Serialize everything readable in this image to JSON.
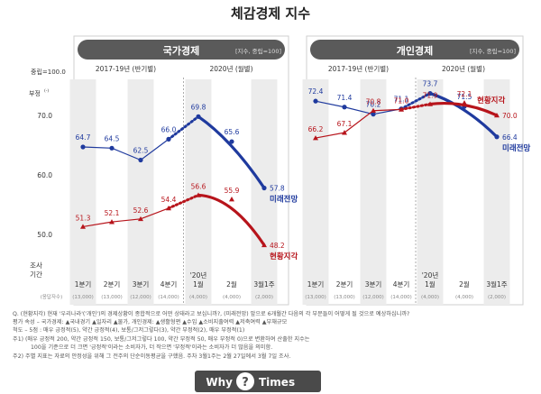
{
  "title": "체감경제 지수",
  "y_axis": {
    "label_top": "중립=100.0",
    "label_bottom": "부정",
    "label_bottom_sup": "(-)",
    "ticks": [
      "70.0",
      "60.0",
      "50.0"
    ]
  },
  "x_axis": {
    "row_title_1": "조사",
    "row_title_2": "기간",
    "row_sub": "(응답자수)",
    "year_marker": "'20년",
    "periods": [
      {
        "label": "1분기",
        "n": "(13,000)"
      },
      {
        "label": "2분기",
        "n": "(13,000)"
      },
      {
        "label": "3분기",
        "n": "(12,000)"
      },
      {
        "label": "4분기",
        "n": "(14,000)"
      },
      {
        "label": "1월",
        "n": "(4,000)"
      },
      {
        "label": "2월",
        "n": "(4,000)"
      },
      {
        "label": "3월1주",
        "n": "(2,000)"
      }
    ]
  },
  "panels": [
    {
      "title": "국가경제",
      "unit": "[지수, 중립=100]",
      "period_2019": "2017-19년 (반기별)",
      "period_2020": "2020년 (월별)",
      "series_labels": {
        "future": "미래전망",
        "current": "현황지각"
      }
    },
    {
      "title": "개인경제",
      "unit": "[지수, 중립=100]",
      "period_2019": "2017-19년 (반기별)",
      "period_2020": "2020년 (월별)",
      "series_labels": {
        "future": "미래전망",
        "current": "현황지각"
      }
    }
  ],
  "chart_data": [
    {
      "type": "line",
      "title": "국가경제",
      "categories": [
        "1분기",
        "2분기",
        "3분기",
        "4분기",
        "1월",
        "2월",
        "3월1주"
      ],
      "series": [
        {
          "name": "미래전망",
          "color": "#1f3a9e",
          "values": [
            64.7,
            64.5,
            62.5,
            66.0,
            69.8,
            65.6,
            57.8
          ]
        },
        {
          "name": "현황지각",
          "color": "#b7141b",
          "values": [
            51.3,
            52.1,
            52.6,
            54.4,
            56.6,
            55.9,
            48.2
          ]
        }
      ]
    },
    {
      "type": "line",
      "title": "개인경제",
      "categories": [
        "1분기",
        "2분기",
        "3분기",
        "4분기",
        "1월",
        "2월",
        "3월1주"
      ],
      "series": [
        {
          "name": "미래전망",
          "color": "#1f3a9e",
          "values": [
            72.4,
            71.4,
            70.2,
            71.1,
            73.7,
            71.5,
            66.4
          ]
        },
        {
          "name": "현황지각",
          "color": "#b7141b",
          "values": [
            66.2,
            67.1,
            70.8,
            71.0,
            71.9,
            72.1,
            70.0
          ]
        }
      ]
    }
  ],
  "footnotes": [
    "Q. (현황지각) 현재 '우리나라'('개인')의 경제상황이 종합적으로 어떤 상태라고 보십니까?, (미래전망) 앞으로 6개월간 다음의 각 부문들이 어떻게 될 것으로 예상하십니까?",
    "평가 속성 – 국가경제: ▲국내경기 ▲일자리 ▲물가, 개인경제: ▲생활형편 ▲수입 ▲소비지출여력 ▲저축여력 ▲부채규모",
    "척도 – 5점 : 매우 긍정적(5), 약간 긍정적(4), 보통/그저그렇다(3), 약간 부정적(2), 매우 부정적(1)",
    "주1) (매우 긍정적 200, 약간 긍정적 150, 보통/그저그렇다 100, 약간 부정적 50, 매우 부정적 0)으로 변환하여 산출한 지수는",
    "100을 기준으로 더 크면 '긍정적'이라는 소비자가, 더 작으면 '부정적'이라는 소비자가 더 많음을 의미함.",
    "주2) 주별 지표는 자료의 안정성을 위해 그 전주의 단순이동평균을 구했음.  주차 3월1주는 2월 27일에서 3월 7일 조사."
  ],
  "brand": {
    "left": "Why",
    "right": "Times",
    "mark": "?"
  }
}
